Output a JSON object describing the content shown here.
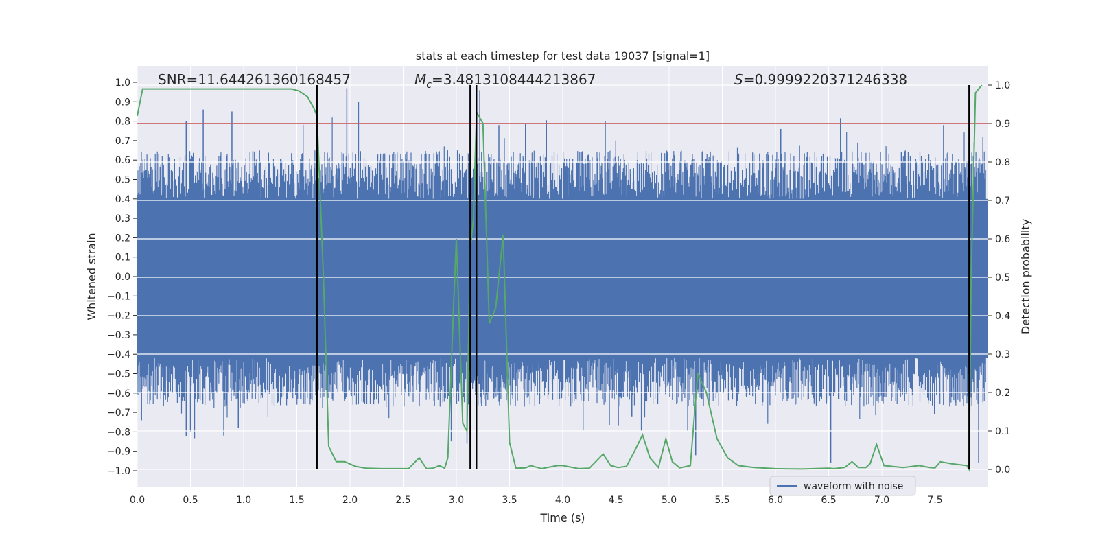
{
  "chart_data": {
    "type": "line",
    "title": "stats at each timestep for test data 19037 [signal=1]",
    "xlabel": "Time (s)",
    "ylabel": "Whitened strain",
    "y2label": "Detection probability",
    "xlim": [
      0.0,
      8.0
    ],
    "ylim": [
      -1.1,
      1.05
    ],
    "y2lim": [
      -0.05,
      1.05
    ],
    "xticks": [
      "0.0",
      "0.5",
      "1.0",
      "1.5",
      "2.0",
      "2.5",
      "3.0",
      "3.5",
      "4.0",
      "4.5",
      "5.0",
      "5.5",
      "6.0",
      "6.5",
      "7.0",
      "7.5"
    ],
    "yticks": [
      "1.0",
      "0.9",
      "0.8",
      "0.7",
      "0.6",
      "0.5",
      "0.4",
      "0.3",
      "0.2",
      "0.1",
      "0.0",
      "-0.1",
      "-0.2",
      "-0.3",
      "-0.4",
      "-0.5",
      "-0.6",
      "-0.7",
      "-0.8",
      "-0.9",
      "-1.0"
    ],
    "y2ticks": [
      "1.0",
      "0.9",
      "0.8",
      "0.7",
      "0.6",
      "0.5",
      "0.4",
      "0.3",
      "0.2",
      "0.1",
      "0.0"
    ],
    "annotations": {
      "snr": "SNR=11.644261360168457",
      "mc_symbol": "M",
      "mc_sub": "c",
      "mc_value": "=3.4813108444213867",
      "s_symbol": "S",
      "s_value": "=0.9999220371246338"
    },
    "threshold": {
      "name": "detection threshold",
      "y2": 0.9,
      "color": "#c44e52"
    },
    "vlines": [
      1.69,
      3.13,
      3.19,
      7.82
    ],
    "legend": {
      "label": "waveform with noise",
      "position": "lower-right"
    },
    "series": [
      {
        "name": "waveform with noise",
        "axis": "left",
        "color": "#4c72b0",
        "style": "noise band",
        "band": {
          "lower": -0.42,
          "upper": 0.4
        },
        "highlight_spikes": [
          {
            "x": 0.04,
            "y": -0.74
          },
          {
            "x": 0.46,
            "y": -0.82
          },
          {
            "x": 0.5,
            "y": -0.8
          },
          {
            "x": 0.62,
            "y": 0.86
          },
          {
            "x": 0.46,
            "y": 0.8
          },
          {
            "x": 0.89,
            "y": 0.85
          },
          {
            "x": 0.95,
            "y": -0.78
          },
          {
            "x": 1.97,
            "y": 0.97
          },
          {
            "x": 2.08,
            "y": 0.9
          },
          {
            "x": 3.13,
            "y": 0.98
          },
          {
            "x": 3.1,
            "y": -0.86
          },
          {
            "x": 3.22,
            "y": 0.96
          },
          {
            "x": 3.4,
            "y": 0.78
          },
          {
            "x": 3.65,
            "y": 0.79
          },
          {
            "x": 4.4,
            "y": 0.8
          },
          {
            "x": 4.65,
            "y": -0.72
          },
          {
            "x": 5.25,
            "y": -0.92
          },
          {
            "x": 6.05,
            "y": 0.76
          },
          {
            "x": 6.52,
            "y": -0.96
          },
          {
            "x": 7.58,
            "y": 0.78
          },
          {
            "x": 7.91,
            "y": -0.96
          },
          {
            "x": 7.95,
            "y": 0.72
          }
        ]
      },
      {
        "name": "detection probability",
        "axis": "right",
        "color": "#55a868",
        "x": [
          0.0,
          0.05,
          0.2,
          0.5,
          1.0,
          1.45,
          1.52,
          1.6,
          1.66,
          1.69,
          1.75,
          1.8,
          1.87,
          1.95,
          2.05,
          2.15,
          2.3,
          2.55,
          2.65,
          2.72,
          2.78,
          2.84,
          2.89,
          2.92,
          2.97,
          3.0,
          3.06,
          3.1,
          3.13,
          3.16,
          3.19,
          3.25,
          3.31,
          3.37,
          3.44,
          3.5,
          3.56,
          3.65,
          3.7,
          3.8,
          3.95,
          4.0,
          4.15,
          4.25,
          4.38,
          4.45,
          4.52,
          4.6,
          4.68,
          4.75,
          4.82,
          4.9,
          4.97,
          5.03,
          5.1,
          5.2,
          5.27,
          5.35,
          5.45,
          5.55,
          5.65,
          5.8,
          6.0,
          6.25,
          6.5,
          6.55,
          6.65,
          6.72,
          6.78,
          6.85,
          6.89,
          6.95,
          7.02,
          7.2,
          7.35,
          7.45,
          7.5,
          7.55,
          7.65,
          7.8,
          7.82,
          7.84,
          7.88,
          7.94
        ],
        "y": [
          0.92,
          0.99,
          0.99,
          0.99,
          0.99,
          0.99,
          0.985,
          0.97,
          0.94,
          0.92,
          0.5,
          0.06,
          0.02,
          0.02,
          0.008,
          0.003,
          0.002,
          0.002,
          0.03,
          0.002,
          0.003,
          0.01,
          0.003,
          0.03,
          0.4,
          0.6,
          0.12,
          0.1,
          0.57,
          0.65,
          0.93,
          0.9,
          0.38,
          0.42,
          0.61,
          0.07,
          0.003,
          0.004,
          0.01,
          0.002,
          0.01,
          0.01,
          0.002,
          0.003,
          0.04,
          0.01,
          0.005,
          0.008,
          0.05,
          0.09,
          0.03,
          0.005,
          0.08,
          0.02,
          0.004,
          0.01,
          0.25,
          0.2,
          0.08,
          0.03,
          0.01,
          0.005,
          0.002,
          0.001,
          0.003,
          0.002,
          0.005,
          0.02,
          0.005,
          0.005,
          0.015,
          0.065,
          0.01,
          0.005,
          0.01,
          0.005,
          0.004,
          0.02,
          0.015,
          0.01,
          0.0,
          0.5,
          0.98,
          1.0
        ]
      }
    ]
  }
}
